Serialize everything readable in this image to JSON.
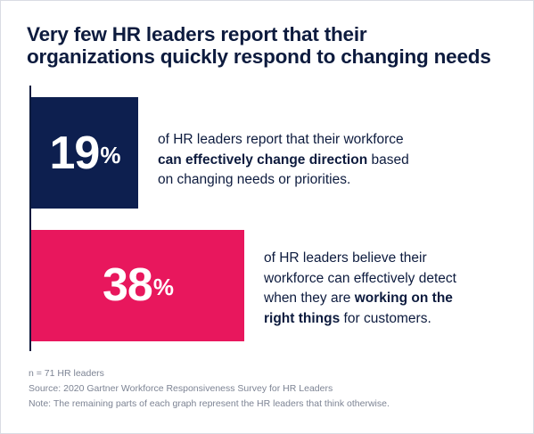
{
  "title": {
    "line1": "Very few HR leaders report that their",
    "line2": "organizations quickly respond to changing needs"
  },
  "chart_data": {
    "type": "bar",
    "orientation": "horizontal",
    "unit": "%",
    "xlim": [
      0,
      100
    ],
    "series": [
      {
        "value": 19,
        "label": "19",
        "color": "#0d1f4f",
        "text_lines": [
          [
            {
              "t": "of HR leaders report that their workforce",
              "b": false
            }
          ],
          [
            {
              "t": "can effectively change direction",
              "b": true
            },
            {
              "t": " based",
              "b": false
            }
          ],
          [
            {
              "t": "on changing needs or priorities.",
              "b": false
            }
          ]
        ]
      },
      {
        "value": 38,
        "label": "38",
        "color": "#e8175d",
        "text_lines": [
          [
            {
              "t": "of HR leaders believe their",
              "b": false
            }
          ],
          [
            {
              "t": "workforce can effectively detect",
              "b": false
            }
          ],
          [
            {
              "t": "when they are ",
              "b": false
            },
            {
              "t": "working on the",
              "b": true
            }
          ],
          [
            {
              "t": "right things",
              "b": true
            },
            {
              "t": " for customers.",
              "b": false
            }
          ]
        ]
      }
    ]
  },
  "notes": {
    "n": "n = 71 HR leaders",
    "source": "Source: 2020 Gartner Workforce Responsiveness Survey for HR Leaders",
    "note": "Note: The remaining parts of each graph represent the HR leaders that think otherwise."
  }
}
